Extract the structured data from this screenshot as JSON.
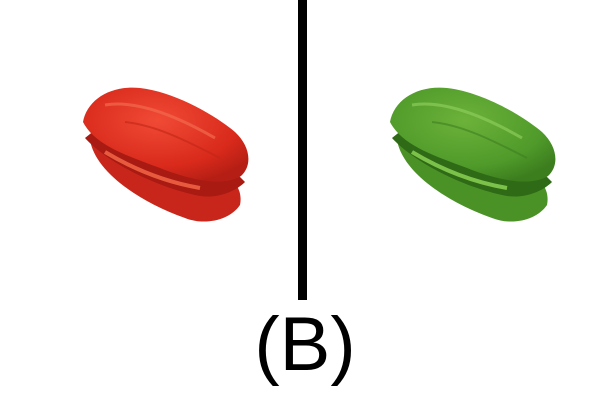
{
  "caption": "(B)",
  "panels": [
    {
      "name": "red-sandwich-image",
      "color": "#e53222"
    },
    {
      "name": "green-sandwich-image",
      "color": "#4f9a2a"
    }
  ]
}
